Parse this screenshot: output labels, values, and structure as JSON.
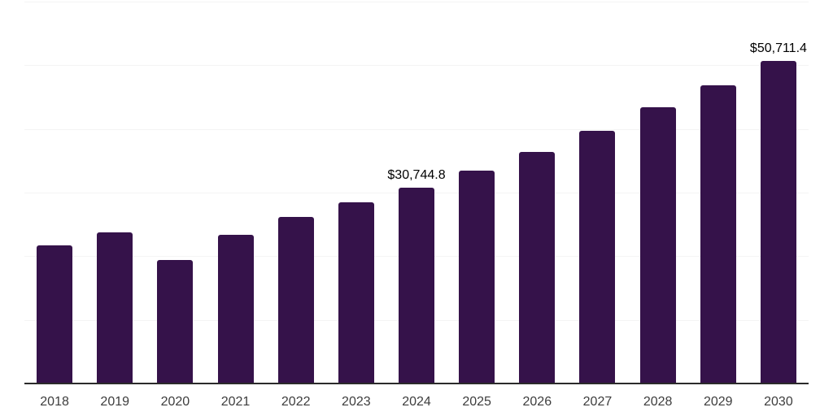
{
  "chart_data": {
    "type": "bar",
    "title": "",
    "xlabel": "",
    "ylabel": "",
    "categories": [
      "2018",
      "2019",
      "2020",
      "2021",
      "2022",
      "2023",
      "2024",
      "2025",
      "2026",
      "2027",
      "2028",
      "2029",
      "2030"
    ],
    "values": [
      21650,
      23800,
      19450,
      23300,
      26200,
      28450,
      30744.8,
      33420,
      36350,
      39700,
      43350,
      46900,
      50711.4
    ],
    "value_labels": [
      null,
      null,
      null,
      null,
      null,
      null,
      "$30,744.8",
      null,
      null,
      null,
      null,
      null,
      "$50,711.4"
    ],
    "ylim": [
      0,
      60000
    ],
    "gridline_step": 10000,
    "grid": "horizontal-only",
    "y_tick_labels_visible": false,
    "legend": "none",
    "colors": {
      "bar": "#35124a",
      "gridline": "#f4f4f4",
      "axis_line": "#2b2b2b",
      "tick_label": "#3d3d3d",
      "value_label": "#000000",
      "background": "#ffffff"
    }
  }
}
